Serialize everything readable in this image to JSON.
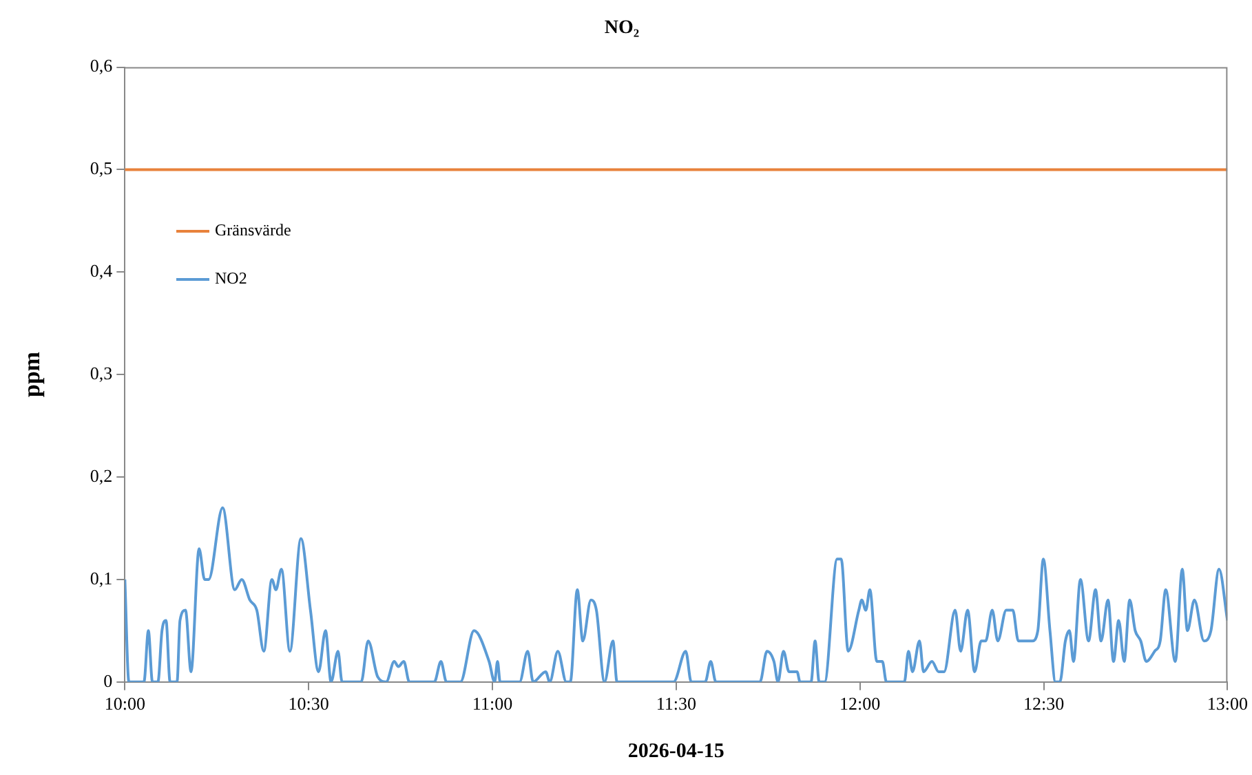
{
  "chart_data": {
    "type": "line",
    "title": "NO₂",
    "xlabel": "2026-04-15",
    "ylabel": "ppm",
    "xlim": [
      10,
      13
    ],
    "xticks": [
      {
        "value": 10,
        "label": "10:00"
      },
      {
        "value": 10.5,
        "label": "10:30"
      },
      {
        "value": 11,
        "label": "11:00"
      },
      {
        "value": 11.5,
        "label": "11:30"
      },
      {
        "value": 12,
        "label": "12:00"
      },
      {
        "value": 12.5,
        "label": "12:30"
      },
      {
        "value": 13,
        "label": "13:00"
      }
    ],
    "ylim": [
      0,
      0.6
    ],
    "yticks": [
      0,
      {
        "value": 0.1,
        "label": "0,1"
      },
      {
        "value": 0.2,
        "label": "0,2"
      },
      {
        "value": 0.3,
        "label": "0,3"
      },
      {
        "value": 0.4,
        "label": "0,4"
      },
      {
        "value": 0.5,
        "label": "0,5"
      },
      {
        "value": 0.6,
        "label": "0,6"
      }
    ],
    "grid": false,
    "legend": "top left",
    "marker": "none",
    "line_style": "solid",
    "series": [
      {
        "name": "Gränsvärde",
        "color": "#e8823c",
        "x": [
          10,
          13
        ],
        "values": [
          0.5,
          0.5
        ]
      },
      {
        "name": "NO2",
        "color": "#5b9bd5",
        "x": [
          10,
          10.011,
          10.052,
          10.064,
          10.075,
          10.09,
          10.101,
          10.112,
          10.123,
          10.142,
          10.15,
          10.165,
          10.18,
          10.202,
          10.217,
          10.228,
          10.266,
          10.299,
          10.318,
          10.34,
          10.359,
          10.378,
          10.4,
          10.411,
          10.426,
          10.449,
          10.479,
          10.505,
          10.527,
          10.546,
          10.561,
          10.58,
          10.591,
          10.643,
          10.662,
          10.688,
          10.711,
          10.733,
          10.744,
          10.759,
          10.774,
          10.842,
          10.86,
          10.875,
          10.913,
          10.95,
          10.991,
          11.006,
          11.014,
          11.021,
          11.074,
          11.096,
          11.111,
          11.145,
          11.156,
          11.178,
          11.201,
          11.212,
          11.231,
          11.246,
          11.268,
          11.283,
          11.305,
          11.328,
          11.339,
          11.493,
          11.526,
          11.541,
          11.579,
          11.594,
          11.608,
          11.728,
          11.747,
          11.766,
          11.777,
          11.792,
          11.807,
          11.829,
          11.837,
          11.867,
          11.878,
          11.889,
          11.904,
          11.938,
          11.949,
          11.968,
          11.997,
          12.005,
          12.016,
          12.027,
          12.046,
          12.061,
          12.072,
          12.121,
          12.132,
          12.143,
          12.162,
          12.173,
          12.196,
          12.214,
          12.229,
          12.259,
          12.274,
          12.293,
          12.312,
          12.33,
          12.342,
          12.36,
          12.375,
          12.398,
          12.416,
          12.431,
          12.469,
          12.484,
          12.499,
          12.517,
          12.532,
          12.544,
          12.559,
          12.57,
          12.581,
          12.6,
          12.622,
          12.641,
          12.656,
          12.675,
          12.69,
          12.704,
          12.719,
          12.734,
          12.749,
          12.764,
          12.779,
          12.802,
          12.817,
          12.832,
          12.858,
          12.877,
          12.891,
          12.91,
          12.936,
          12.955,
          12.977,
          13
        ],
        "values": [
          0.1,
          0,
          0,
          0.05,
          0,
          0,
          0.05,
          0.06,
          0,
          0,
          0.06,
          0.07,
          0.01,
          0.13,
          0.1,
          0.1,
          0.17,
          0.09,
          0.1,
          0.08,
          0.07,
          0.03,
          0.1,
          0.09,
          0.11,
          0.03,
          0.14,
          0.07,
          0.01,
          0.05,
          0,
          0.03,
          0,
          0,
          0.04,
          0.005,
          0,
          0.02,
          0.015,
          0.02,
          0,
          0,
          0.02,
          0,
          0,
          0.05,
          0.02,
          0,
          0.02,
          0,
          0,
          0.03,
          0,
          0.01,
          0,
          0.03,
          0,
          0,
          0.09,
          0.04,
          0.08,
          0.07,
          0,
          0.04,
          0,
          0,
          0.03,
          0,
          0,
          0.02,
          0,
          0,
          0.03,
          0.02,
          0,
          0.03,
          0.01,
          0.01,
          0,
          0,
          0.04,
          0,
          0,
          0.12,
          0.12,
          0.03,
          0.07,
          0.08,
          0.07,
          0.09,
          0.02,
          0.02,
          0,
          0,
          0.03,
          0.01,
          0.04,
          0.01,
          0.02,
          0.01,
          0.01,
          0.07,
          0.03,
          0.07,
          0.01,
          0.04,
          0.04,
          0.07,
          0.04,
          0.07,
          0.07,
          0.04,
          0.04,
          0.05,
          0.12,
          0.05,
          0,
          0,
          0.04,
          0.05,
          0.02,
          0.1,
          0.04,
          0.09,
          0.04,
          0.08,
          0.02,
          0.06,
          0.02,
          0.08,
          0.05,
          0.04,
          0.02,
          0.03,
          0.04,
          0.09,
          0.02,
          0.11,
          0.05,
          0.08,
          0.04,
          0.05,
          0.11,
          0.06
        ]
      }
    ]
  }
}
